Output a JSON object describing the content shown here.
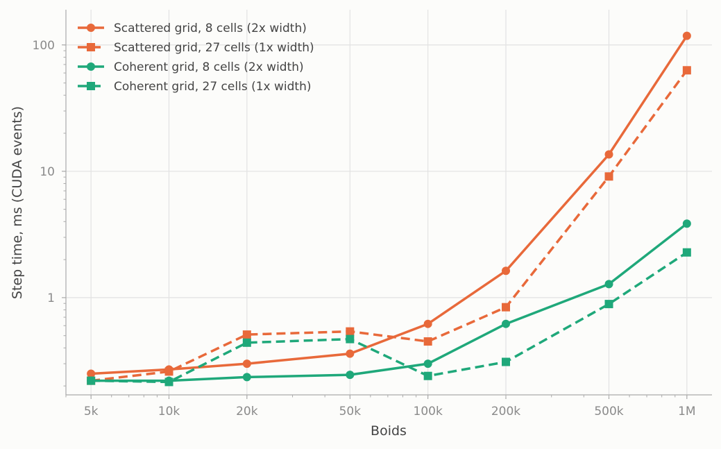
{
  "chart_data": {
    "type": "line",
    "xlabel": "Boids",
    "ylabel": "Step time, ms (CUDA events)",
    "x_scale": "log",
    "y_scale": "log",
    "x": [
      5000,
      10000,
      20000,
      50000,
      100000,
      200000,
      500000,
      1000000
    ],
    "x_tick_labels": [
      "5k",
      "10k",
      "20k",
      "50k",
      "100k",
      "200k",
      "500k",
      "1M"
    ],
    "y_ticks": [
      1,
      10,
      100
    ],
    "y_tick_labels": [
      "1",
      "10",
      "100"
    ],
    "xlim": [
      4000,
      1250000
    ],
    "ylim": [
      0.17,
      190
    ],
    "grid": true,
    "legend_position": "top-left",
    "series": [
      {
        "name": "Scattered grid, 8 cells (2x width)",
        "color": "#e8693a",
        "dash": "solid",
        "marker": "circle",
        "values": [
          0.25,
          0.27,
          0.3,
          0.36,
          0.62,
          1.63,
          13.6,
          118
        ]
      },
      {
        "name": "Scattered grid, 27 cells (1x width)",
        "color": "#e8693a",
        "dash": "dashed",
        "marker": "square",
        "values": [
          0.22,
          0.26,
          0.51,
          0.54,
          0.45,
          0.84,
          9.1,
          63
        ]
      },
      {
        "name": "Coherent grid, 8 cells (2x width)",
        "color": "#1fa87a",
        "dash": "solid",
        "marker": "circle",
        "values": [
          0.22,
          0.22,
          0.235,
          0.245,
          0.3,
          0.62,
          1.28,
          3.85
        ]
      },
      {
        "name": "Coherent grid, 27 cells (1x width)",
        "color": "#1fa87a",
        "dash": "dashed",
        "marker": "square",
        "values": [
          0.22,
          0.215,
          0.44,
          0.47,
          0.24,
          0.31,
          0.89,
          2.28
        ]
      }
    ]
  }
}
